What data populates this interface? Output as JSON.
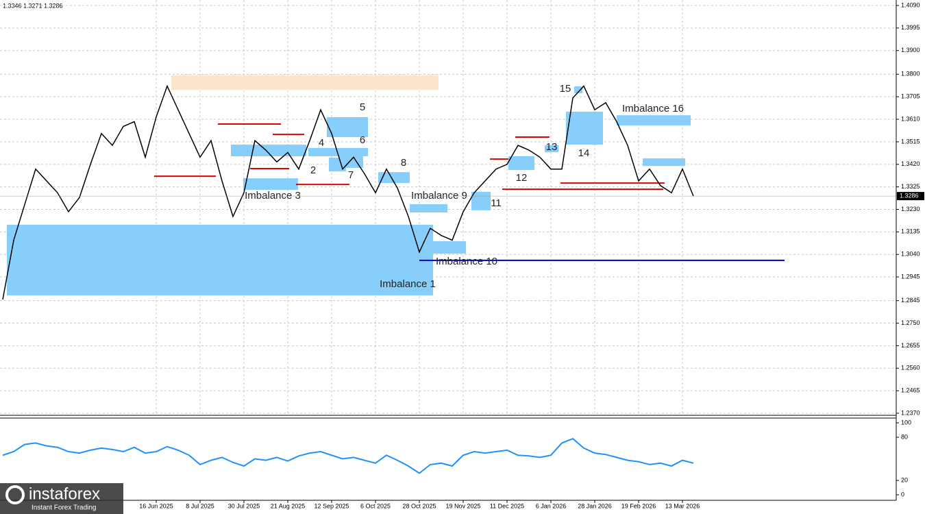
{
  "chart_data": [
    {
      "type": "line",
      "ohlc": [
        1.3346,
        1.3271,
        1.3286
      ],
      "last_price": 1.3286,
      "color": "#000000",
      "categories": [
        null,
        null,
        null,
        null,
        null,
        null,
        null,
        null,
        null,
        null,
        null,
        null,
        null,
        null,
        "16 Jun 2025",
        null,
        null,
        null,
        "8 Jul 2025",
        null,
        null,
        null,
        "30 Jul 2025",
        null,
        null,
        null,
        "21 Aug 2025",
        null,
        null,
        null,
        "12 Sep 2025",
        null,
        null,
        null,
        "6 Oct 2025",
        null,
        null,
        null,
        "28 Oct 2025",
        null,
        null,
        null,
        "19 Nov 2025",
        null,
        null,
        null,
        "11 Dec 2025",
        null,
        null,
        null,
        "6 Jan 2026",
        null,
        null,
        null,
        "28 Jan 2026",
        null,
        null,
        null,
        "19 Feb 2026",
        null,
        null,
        null,
        "13 Mar 2026",
        null
      ],
      "values": [
        1.285,
        1.31,
        1.325,
        1.34,
        1.335,
        1.33,
        1.322,
        1.328,
        1.342,
        1.355,
        1.35,
        1.358,
        1.36,
        1.345,
        1.362,
        1.375,
        1.365,
        1.355,
        1.345,
        1.352,
        1.335,
        1.32,
        1.33,
        1.352,
        1.348,
        1.343,
        1.347,
        1.34,
        1.352,
        1.365,
        1.355,
        1.34,
        1.345,
        1.338,
        1.33,
        1.34,
        1.332,
        1.32,
        1.305,
        1.315,
        1.312,
        1.31,
        1.322,
        1.33,
        1.335,
        1.34,
        1.342,
        1.35,
        1.348,
        1.345,
        1.34,
        1.34,
        1.37,
        1.375,
        1.365,
        1.368,
        1.36,
        1.35,
        1.335,
        1.34,
        1.333,
        1.33,
        1.34,
        1.3286
      ],
      "ylim": [
        1.237,
        1.409
      ],
      "yticks": [
        {
          "value": 1.409,
          "label": "1.4090"
        },
        1.3995,
        {
          "value": 1.39,
          "label": "1.3900"
        },
        {
          "value": 1.38,
          "label": "1.3800"
        },
        1.3705,
        {
          "value": 1.361,
          "label": "1.3610"
        },
        1.3515,
        {
          "value": 1.342,
          "label": "1.3420"
        },
        1.3325,
        {
          "value": 1.323,
          "label": "1.3230"
        },
        1.3135,
        {
          "value": 1.304,
          "label": "1.3040"
        },
        1.2945,
        1.2845,
        {
          "value": 1.275,
          "label": "1.2750"
        },
        1.2655,
        {
          "value": 1.256,
          "label": "1.2560"
        },
        1.2465,
        {
          "value": 1.237,
          "label": "1.2370"
        }
      ],
      "grid": true,
      "zone_color": "#87cefa",
      "zones": [
        {
          "label": "Imbalance 1",
          "high": 1.3165,
          "low": 1.2867
        },
        {
          "high": 1.3795,
          "low": 1.3734,
          "color": "#fbe5cc"
        },
        {
          "label": "2",
          "high": 1.3503,
          "low": 1.3454
        },
        {
          "label": "Imbalance 3",
          "high": 1.3361,
          "low": 1.3312
        },
        {
          "label": "4",
          "high": 1.3489,
          "low": 1.3454
        },
        {
          "label": "5",
          "high": 1.3619,
          "low": 1.3535
        },
        {
          "label": "6",
          "high": 1.3463,
          "low": 1.3405
        },
        {
          "label": "7",
          "high": 1.3448,
          "low": 1.339
        },
        {
          "label": "8",
          "high": 1.3387,
          "low": 1.3341
        },
        {
          "label": "Imbalance 9",
          "high": 1.3252,
          "low": 1.3217
        },
        {
          "label": "Imbalance 10",
          "high": 1.3096,
          "low": 1.3043
        },
        {
          "label": "11",
          "high": 1.3304,
          "low": 1.3226
        },
        {
          "label": "12",
          "high": 1.3454,
          "low": 1.3396
        },
        {
          "label": "13",
          "high": 1.35,
          "low": 1.3471
        },
        {
          "label": "14",
          "high": 1.3642,
          "low": 1.3503
        },
        {
          "label": "15",
          "high": 1.3749,
          "low": 1.372
        },
        {
          "label": "Imbalance 16",
          "high": 1.3627,
          "low": 1.3584
        },
        {
          "high": 1.3445,
          "low": 1.3413
        }
      ],
      "levels": [
        {
          "value": 1.337,
          "color": "#e00000"
        },
        {
          "value": 1.359,
          "color": "#e00000"
        },
        {
          "value": 1.3402,
          "color": "#e00000"
        },
        {
          "value": 1.3335,
          "color": "#e00000"
        },
        {
          "value": 1.3546,
          "color": "#e00000"
        },
        {
          "value": 1.3442,
          "color": "#e00000"
        },
        {
          "value": 1.3535,
          "color": "#e00000"
        },
        {
          "value": 1.3315,
          "color": "#e00000"
        },
        {
          "value": 1.3341,
          "color": "#e00000"
        },
        {
          "value": 1.3015,
          "color": "#0000c0"
        }
      ]
    },
    {
      "type": "line",
      "color": "#1e90ff",
      "values": [
        55,
        60,
        70,
        72,
        68,
        66,
        60,
        58,
        62,
        65,
        63,
        60,
        66,
        58,
        60,
        67,
        62,
        55,
        42,
        48,
        52,
        45,
        40,
        50,
        48,
        52,
        47,
        54,
        58,
        60,
        55,
        50,
        52,
        48,
        44,
        55,
        48,
        40,
        30,
        42,
        44,
        40,
        55,
        60,
        58,
        60,
        62,
        55,
        54,
        52,
        55,
        72,
        78,
        65,
        58,
        56,
        52,
        48,
        46,
        42,
        44,
        40,
        48,
        44
      ],
      "ylim": [
        0,
        100
      ],
      "yticks": [
        0,
        20,
        80,
        100
      ]
    }
  ],
  "watermark": {
    "brand": "instaforex",
    "tagline": "Instant Forex Trading"
  }
}
